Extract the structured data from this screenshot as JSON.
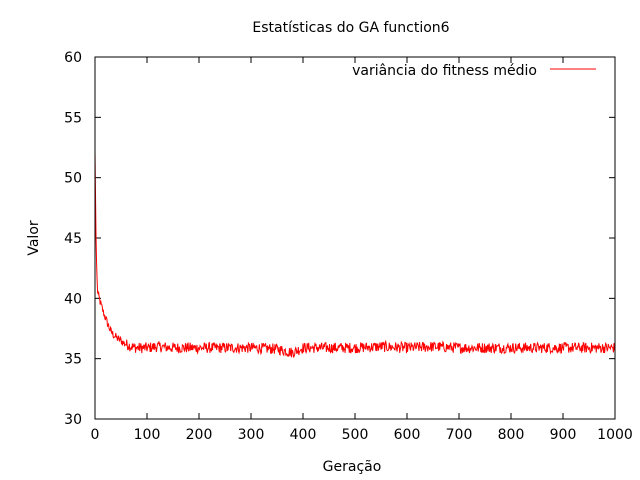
{
  "chart_data": {
    "type": "line",
    "title": "Estatísticas do GA function6",
    "xlabel": "Geração",
    "ylabel": "Valor",
    "xlim": [
      0,
      1000
    ],
    "ylim": [
      30,
      60
    ],
    "xticks": [
      "0",
      "100",
      "200",
      "300",
      "400",
      "500",
      "600",
      "700",
      "800",
      "900",
      "1000"
    ],
    "yticks": [
      "30",
      "35",
      "40",
      "45",
      "50",
      "55",
      "60"
    ],
    "grid": false,
    "legend_position": "top-right",
    "colors": {
      "series": "#ff0000",
      "axes": "#000000"
    },
    "series": [
      {
        "name": "variância do fitness médio",
        "description": "noisy curve; values listed are approximate trend points, rendered with small oscillation",
        "x": [
          0,
          1,
          2,
          3,
          4,
          5,
          6,
          8,
          10,
          12,
          15,
          18,
          20,
          25,
          30,
          35,
          40,
          45,
          50,
          55,
          60,
          65,
          70,
          80,
          90,
          100,
          120,
          150,
          200,
          250,
          300,
          350,
          380,
          400,
          450,
          500,
          550,
          600,
          650,
          700,
          750,
          800,
          850,
          900,
          950,
          1000
        ],
        "y": [
          52.2,
          48.5,
          45.0,
          43.0,
          41.5,
          40.6,
          40.3,
          40.0,
          39.7,
          39.4,
          39.0,
          38.6,
          38.4,
          37.8,
          37.3,
          37.0,
          36.8,
          36.6,
          36.5,
          36.3,
          36.2,
          36.1,
          36.0,
          35.9,
          35.9,
          35.9,
          36.0,
          35.9,
          35.9,
          35.9,
          35.9,
          35.8,
          35.5,
          35.9,
          35.9,
          35.9,
          36.0,
          35.9,
          36.0,
          35.9,
          35.9,
          35.9,
          35.9,
          35.9,
          35.9,
          35.9
        ]
      }
    ]
  }
}
